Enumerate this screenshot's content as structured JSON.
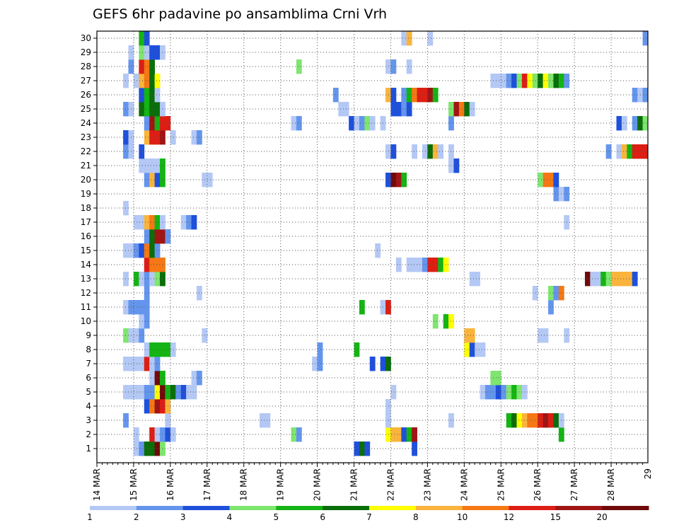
{
  "chart_data": {
    "type": "heatmap",
    "title": "GEFS 6hr padavine po ansamblima Crni Vrh",
    "x_tick_labels": [
      "14 MAR",
      "15 MAR",
      "16 MAR",
      "17 MAR",
      "18 MAR",
      "19 MAR",
      "20 MAR",
      "21 MAR",
      "22 MAR",
      "23 MAR",
      "24 MAR",
      "25 MAR",
      "26 MAR",
      "27 MAR",
      "28 MAR",
      "29"
    ],
    "y_tick_labels": [
      "1",
      "2",
      "3",
      "4",
      "5",
      "6",
      "7",
      "8",
      "9",
      "10",
      "11",
      "12",
      "13",
      "14",
      "15",
      "16",
      "17",
      "18",
      "19",
      "20",
      "21",
      "22",
      "23",
      "24",
      "25",
      "26",
      "27",
      "28",
      "29",
      "30"
    ],
    "steps_per_day": 4,
    "colorbar": {
      "labels": [
        "1",
        "2",
        "3",
        "4",
        "5",
        "6",
        "7",
        "8",
        "10",
        "12",
        "15",
        "20"
      ],
      "colors": [
        "#b4c8f5",
        "#6495ed",
        "#1e50dc",
        "#7ee66e",
        "#14b414",
        "#0a6e0a",
        "#ffff00",
        "#fab43c",
        "#f57814",
        "#dc1e14",
        "#a01414",
        "#700a0a"
      ]
    },
    "cells": [
      [
        1,
        7,
        0
      ],
      [
        1,
        8,
        1
      ],
      [
        1,
        9,
        5
      ],
      [
        1,
        10,
        5
      ],
      [
        1,
        11,
        11
      ],
      [
        1,
        12,
        3
      ],
      [
        1,
        49,
        2
      ],
      [
        1,
        50,
        5
      ],
      [
        1,
        51,
        2
      ],
      [
        1,
        60,
        2
      ],
      [
        2,
        7,
        0
      ],
      [
        2,
        10,
        9
      ],
      [
        2,
        11,
        0
      ],
      [
        2,
        12,
        1
      ],
      [
        2,
        13,
        2
      ],
      [
        2,
        14,
        0
      ],
      [
        2,
        37,
        3
      ],
      [
        2,
        38,
        1
      ],
      [
        2,
        55,
        6
      ],
      [
        2,
        56,
        7
      ],
      [
        2,
        57,
        7
      ],
      [
        2,
        58,
        2
      ],
      [
        2,
        59,
        4
      ],
      [
        2,
        60,
        10
      ],
      [
        2,
        88,
        4
      ],
      [
        3,
        5,
        1
      ],
      [
        3,
        13,
        0
      ],
      [
        3,
        31,
        0
      ],
      [
        3,
        32,
        0
      ],
      [
        3,
        55,
        0
      ],
      [
        3,
        67,
        0
      ],
      [
        3,
        78,
        4
      ],
      [
        3,
        79,
        5
      ],
      [
        3,
        80,
        6
      ],
      [
        3,
        81,
        7
      ],
      [
        3,
        82,
        8
      ],
      [
        3,
        83,
        8
      ],
      [
        3,
        84,
        9
      ],
      [
        3,
        85,
        10
      ],
      [
        3,
        86,
        9
      ],
      [
        3,
        87,
        5
      ],
      [
        3,
        88,
        0
      ],
      [
        4,
        9,
        2
      ],
      [
        4,
        10,
        8
      ],
      [
        4,
        11,
        10
      ],
      [
        4,
        12,
        9
      ],
      [
        4,
        13,
        7
      ],
      [
        4,
        55,
        0
      ],
      [
        5,
        5,
        0
      ],
      [
        5,
        6,
        0
      ],
      [
        5,
        7,
        0
      ],
      [
        5,
        8,
        0
      ],
      [
        5,
        9,
        1
      ],
      [
        5,
        10,
        1
      ],
      [
        5,
        11,
        6
      ],
      [
        5,
        12,
        11
      ],
      [
        5,
        13,
        4
      ],
      [
        5,
        14,
        5
      ],
      [
        5,
        15,
        1
      ],
      [
        5,
        16,
        2
      ],
      [
        5,
        17,
        0
      ],
      [
        5,
        18,
        0
      ],
      [
        5,
        56,
        0
      ],
      [
        5,
        73,
        0
      ],
      [
        5,
        74,
        1
      ],
      [
        5,
        75,
        1
      ],
      [
        5,
        76,
        2
      ],
      [
        5,
        77,
        1
      ],
      [
        5,
        78,
        3
      ],
      [
        5,
        79,
        4
      ],
      [
        5,
        80,
        3
      ],
      [
        5,
        81,
        0
      ],
      [
        6,
        10,
        0
      ],
      [
        6,
        11,
        11
      ],
      [
        6,
        12,
        4
      ],
      [
        6,
        18,
        0
      ],
      [
        6,
        19,
        1
      ],
      [
        6,
        75,
        3
      ],
      [
        6,
        76,
        3
      ],
      [
        7,
        5,
        0
      ],
      [
        7,
        6,
        0
      ],
      [
        7,
        7,
        0
      ],
      [
        7,
        8,
        0
      ],
      [
        7,
        9,
        9
      ],
      [
        7,
        10,
        0
      ],
      [
        7,
        11,
        1
      ],
      [
        7,
        41,
        0
      ],
      [
        7,
        42,
        1
      ],
      [
        7,
        52,
        2
      ],
      [
        7,
        54,
        2
      ],
      [
        7,
        55,
        5
      ],
      [
        8,
        9,
        0
      ],
      [
        8,
        10,
        4
      ],
      [
        8,
        11,
        4
      ],
      [
        8,
        12,
        4
      ],
      [
        8,
        13,
        4
      ],
      [
        8,
        14,
        0
      ],
      [
        8,
        42,
        1
      ],
      [
        8,
        49,
        4
      ],
      [
        8,
        70,
        6
      ],
      [
        8,
        71,
        2
      ],
      [
        8,
        72,
        0
      ],
      [
        8,
        73,
        0
      ],
      [
        9,
        5,
        3
      ],
      [
        9,
        6,
        0
      ],
      [
        9,
        7,
        0
      ],
      [
        9,
        8,
        1
      ],
      [
        9,
        20,
        0
      ],
      [
        9,
        70,
        7
      ],
      [
        9,
        71,
        7
      ],
      [
        9,
        84,
        0
      ],
      [
        9,
        85,
        0
      ],
      [
        9,
        89,
        0
      ],
      [
        10,
        8,
        0
      ],
      [
        10,
        9,
        1
      ],
      [
        10,
        64,
        3
      ],
      [
        10,
        66,
        4
      ],
      [
        10,
        67,
        6
      ],
      [
        11,
        5,
        0
      ],
      [
        11,
        6,
        1
      ],
      [
        11,
        7,
        1
      ],
      [
        11,
        8,
        1
      ],
      [
        11,
        9,
        1
      ],
      [
        11,
        50,
        4
      ],
      [
        11,
        54,
        0
      ],
      [
        11,
        55,
        9
      ],
      [
        11,
        86,
        1
      ],
      [
        12,
        9,
        1
      ],
      [
        12,
        19,
        0
      ],
      [
        12,
        83,
        0
      ],
      [
        12,
        86,
        3
      ],
      [
        12,
        87,
        1
      ],
      [
        12,
        88,
        8
      ],
      [
        13,
        5,
        0
      ],
      [
        13,
        7,
        4
      ],
      [
        13,
        8,
        0
      ],
      [
        13,
        9,
        1
      ],
      [
        13,
        10,
        0
      ],
      [
        13,
        11,
        3
      ],
      [
        13,
        12,
        5
      ],
      [
        13,
        71,
        0
      ],
      [
        13,
        72,
        0
      ],
      [
        13,
        93,
        11
      ],
      [
        13,
        94,
        0
      ],
      [
        13,
        95,
        0
      ],
      [
        13,
        96,
        4
      ],
      [
        13,
        97,
        3
      ],
      [
        13,
        98,
        7
      ],
      [
        13,
        99,
        7
      ],
      [
        13,
        100,
        7
      ],
      [
        13,
        101,
        7
      ],
      [
        13,
        102,
        2
      ],
      [
        14,
        9,
        9
      ],
      [
        14,
        10,
        8
      ],
      [
        14,
        11,
        8
      ],
      [
        14,
        12,
        8
      ],
      [
        14,
        57,
        0
      ],
      [
        14,
        59,
        0
      ],
      [
        14,
        60,
        0
      ],
      [
        14,
        61,
        0
      ],
      [
        14,
        62,
        1
      ],
      [
        14,
        63,
        9
      ],
      [
        14,
        64,
        9
      ],
      [
        14,
        65,
        4
      ],
      [
        14,
        66,
        6
      ],
      [
        15,
        5,
        0
      ],
      [
        15,
        6,
        0
      ],
      [
        15,
        7,
        1
      ],
      [
        15,
        8,
        2
      ],
      [
        15,
        9,
        8
      ],
      [
        15,
        10,
        5
      ],
      [
        15,
        11,
        1
      ],
      [
        15,
        53,
        0
      ],
      [
        16,
        9,
        1
      ],
      [
        16,
        10,
        5
      ],
      [
        16,
        11,
        10
      ],
      [
        16,
        12,
        10
      ],
      [
        16,
        13,
        1
      ],
      [
        17,
        7,
        0
      ],
      [
        17,
        8,
        0
      ],
      [
        17,
        9,
        7
      ],
      [
        17,
        10,
        8
      ],
      [
        17,
        11,
        4
      ],
      [
        17,
        12,
        0
      ],
      [
        17,
        16,
        0
      ],
      [
        17,
        17,
        1
      ],
      [
        17,
        18,
        2
      ],
      [
        17,
        89,
        0
      ],
      [
        18,
        5,
        0
      ],
      [
        19,
        87,
        1
      ],
      [
        19,
        88,
        0
      ],
      [
        19,
        89,
        1
      ],
      [
        20,
        9,
        1
      ],
      [
        20,
        10,
        7
      ],
      [
        20,
        11,
        2
      ],
      [
        20,
        12,
        4
      ],
      [
        20,
        20,
        0
      ],
      [
        20,
        21,
        0
      ],
      [
        20,
        55,
        2
      ],
      [
        20,
        56,
        11
      ],
      [
        20,
        57,
        10
      ],
      [
        20,
        58,
        4
      ],
      [
        20,
        84,
        3
      ],
      [
        20,
        85,
        8
      ],
      [
        20,
        86,
        8
      ],
      [
        20,
        87,
        2
      ],
      [
        21,
        8,
        0
      ],
      [
        21,
        9,
        0
      ],
      [
        21,
        10,
        0
      ],
      [
        21,
        11,
        0
      ],
      [
        21,
        12,
        4
      ],
      [
        21,
        67,
        0
      ],
      [
        21,
        68,
        2
      ],
      [
        22,
        5,
        1
      ],
      [
        22,
        6,
        0
      ],
      [
        22,
        8,
        2
      ],
      [
        22,
        55,
        0
      ],
      [
        22,
        56,
        2
      ],
      [
        22,
        60,
        0
      ],
      [
        22,
        62,
        0
      ],
      [
        22,
        63,
        5
      ],
      [
        22,
        64,
        7
      ],
      [
        22,
        65,
        0
      ],
      [
        22,
        67,
        0
      ],
      [
        22,
        97,
        1
      ],
      [
        22,
        99,
        0
      ],
      [
        22,
        100,
        7
      ],
      [
        22,
        101,
        4
      ],
      [
        22,
        102,
        9
      ],
      [
        22,
        103,
        9
      ],
      [
        22,
        104,
        9
      ],
      [
        23,
        5,
        2
      ],
      [
        23,
        6,
        0
      ],
      [
        23,
        9,
        7
      ],
      [
        23,
        10,
        9
      ],
      [
        23,
        11,
        9
      ],
      [
        23,
        12,
        10
      ],
      [
        23,
        14,
        0
      ],
      [
        23,
        18,
        0
      ],
      [
        23,
        19,
        1
      ],
      [
        24,
        9,
        1
      ],
      [
        24,
        10,
        10
      ],
      [
        24,
        11,
        4
      ],
      [
        24,
        12,
        9
      ],
      [
        24,
        13,
        9
      ],
      [
        24,
        37,
        0
      ],
      [
        24,
        38,
        1
      ],
      [
        24,
        48,
        2
      ],
      [
        24,
        49,
        0
      ],
      [
        24,
        50,
        1
      ],
      [
        24,
        51,
        3
      ],
      [
        24,
        52,
        0
      ],
      [
        24,
        54,
        0
      ],
      [
        24,
        67,
        1
      ],
      [
        24,
        99,
        2
      ],
      [
        24,
        100,
        0
      ],
      [
        24,
        102,
        1
      ],
      [
        24,
        103,
        5
      ],
      [
        24,
        104,
        3
      ],
      [
        25,
        5,
        1
      ],
      [
        25,
        6,
        0
      ],
      [
        25,
        8,
        5
      ],
      [
        25,
        9,
        4
      ],
      [
        25,
        10,
        5
      ],
      [
        25,
        11,
        5
      ],
      [
        25,
        12,
        0
      ],
      [
        25,
        46,
        0
      ],
      [
        25,
        47,
        0
      ],
      [
        25,
        56,
        2
      ],
      [
        25,
        57,
        2
      ],
      [
        25,
        58,
        1
      ],
      [
        25,
        59,
        2
      ],
      [
        25,
        67,
        3
      ],
      [
        25,
        68,
        10
      ],
      [
        25,
        69,
        8
      ],
      [
        25,
        70,
        5
      ],
      [
        25,
        71,
        0
      ],
      [
        26,
        8,
        2
      ],
      [
        26,
        9,
        4
      ],
      [
        26,
        10,
        5
      ],
      [
        26,
        11,
        0
      ],
      [
        26,
        45,
        1
      ],
      [
        26,
        55,
        7
      ],
      [
        26,
        56,
        2
      ],
      [
        26,
        58,
        1
      ],
      [
        26,
        59,
        4
      ],
      [
        26,
        60,
        8
      ],
      [
        26,
        61,
        9
      ],
      [
        26,
        62,
        9
      ],
      [
        26,
        63,
        10
      ],
      [
        26,
        64,
        4
      ],
      [
        26,
        102,
        1
      ],
      [
        26,
        103,
        0
      ],
      [
        26,
        104,
        1
      ],
      [
        27,
        5,
        0
      ],
      [
        27,
        7,
        0
      ],
      [
        27,
        8,
        7
      ],
      [
        27,
        9,
        8
      ],
      [
        27,
        10,
        5
      ],
      [
        27,
        11,
        6
      ],
      [
        27,
        75,
        0
      ],
      [
        27,
        76,
        0
      ],
      [
        27,
        77,
        0
      ],
      [
        27,
        78,
        1
      ],
      [
        27,
        79,
        2
      ],
      [
        27,
        80,
        3
      ],
      [
        27,
        81,
        9
      ],
      [
        27,
        82,
        6
      ],
      [
        27,
        83,
        3
      ],
      [
        27,
        84,
        5
      ],
      [
        27,
        85,
        6
      ],
      [
        27,
        86,
        3
      ],
      [
        27,
        87,
        5
      ],
      [
        27,
        88,
        4
      ],
      [
        27,
        89,
        1
      ],
      [
        28,
        6,
        1
      ],
      [
        28,
        8,
        9
      ],
      [
        28,
        9,
        8
      ],
      [
        28,
        10,
        5
      ],
      [
        28,
        38,
        3
      ],
      [
        28,
        55,
        0
      ],
      [
        28,
        56,
        1
      ],
      [
        28,
        59,
        0
      ],
      [
        29,
        6,
        0
      ],
      [
        29,
        8,
        3
      ],
      [
        29,
        9,
        0
      ],
      [
        29,
        10,
        2
      ],
      [
        29,
        11,
        2
      ],
      [
        29,
        12,
        0
      ],
      [
        30,
        8,
        4
      ],
      [
        30,
        9,
        2
      ],
      [
        30,
        58,
        0
      ],
      [
        30,
        59,
        7
      ],
      [
        30,
        63,
        0
      ],
      [
        30,
        104,
        1
      ]
    ]
  }
}
